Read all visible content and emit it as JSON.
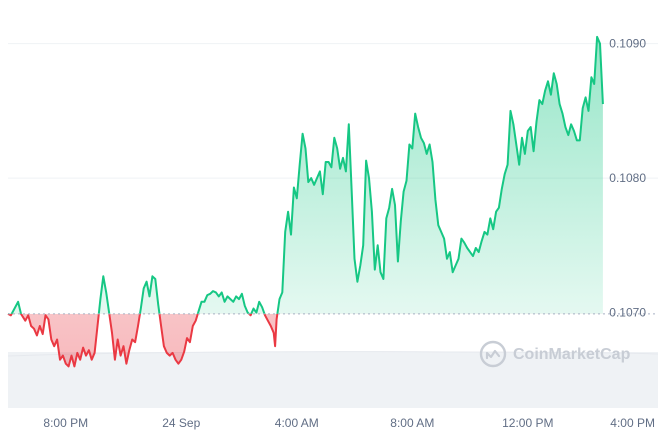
{
  "chart_data": {
    "type": "area",
    "title": "",
    "xlabel": "",
    "ylabel": "",
    "x_tick_labels": [
      "8:00 PM",
      "24 Sep",
      "4:00 AM",
      "8:00 AM",
      "12:00 PM",
      "4:00 PM"
    ],
    "x_tick_hours": [
      2,
      6,
      10,
      14,
      18,
      22
    ],
    "y_ticks": [
      {
        "value": 0.107,
        "label": "0.1070"
      },
      {
        "value": 0.108,
        "label": "0.1080"
      },
      {
        "value": 0.109,
        "label": "0.1090"
      }
    ],
    "ylim": [
      0.10635,
      0.10925
    ],
    "xlim_hours": [
      0,
      22.3
    ],
    "baseline_value": 0.10699,
    "colors": {
      "up": "#16c784",
      "down": "#ea3943",
      "grid": "#eff2f5",
      "baseline": "#a6b0c3",
      "volume": "#eff2f5"
    },
    "grid": true,
    "series": [
      {
        "points": [
          [
            0.0,
            0.10699
          ],
          [
            0.1,
            0.10698
          ],
          [
            0.2,
            0.10702
          ],
          [
            0.35,
            0.10708
          ],
          [
            0.45,
            0.10699
          ],
          [
            0.6,
            0.10694
          ],
          [
            0.7,
            0.10698
          ],
          [
            0.8,
            0.1069
          ],
          [
            0.9,
            0.10688
          ],
          [
            1.0,
            0.10683
          ],
          [
            1.1,
            0.1069
          ],
          [
            1.2,
            0.10684
          ],
          [
            1.3,
            0.10698
          ],
          [
            1.4,
            0.10695
          ],
          [
            1.5,
            0.1068
          ],
          [
            1.6,
            0.10675
          ],
          [
            1.7,
            0.1068
          ],
          [
            1.8,
            0.10665
          ],
          [
            1.9,
            0.10668
          ],
          [
            2.0,
            0.10662
          ],
          [
            2.1,
            0.1066
          ],
          [
            2.2,
            0.10668
          ],
          [
            2.3,
            0.1066
          ],
          [
            2.4,
            0.1067
          ],
          [
            2.5,
            0.10665
          ],
          [
            2.6,
            0.10674
          ],
          [
            2.7,
            0.10668
          ],
          [
            2.8,
            0.10672
          ],
          [
            2.9,
            0.10665
          ],
          [
            3.0,
            0.1067
          ],
          [
            3.1,
            0.1069
          ],
          [
            3.2,
            0.1071
          ],
          [
            3.3,
            0.10727
          ],
          [
            3.4,
            0.10715
          ],
          [
            3.5,
            0.107
          ],
          [
            3.6,
            0.10685
          ],
          [
            3.7,
            0.10665
          ],
          [
            3.8,
            0.1068
          ],
          [
            3.9,
            0.10668
          ],
          [
            4.0,
            0.10675
          ],
          [
            4.1,
            0.10662
          ],
          [
            4.2,
            0.10672
          ],
          [
            4.3,
            0.1068
          ],
          [
            4.4,
            0.10678
          ],
          [
            4.5,
            0.1069
          ],
          [
            4.6,
            0.10703
          ],
          [
            4.7,
            0.10718
          ],
          [
            4.8,
            0.10723
          ],
          [
            4.9,
            0.10712
          ],
          [
            5.0,
            0.10727
          ],
          [
            5.1,
            0.10725
          ],
          [
            5.2,
            0.10706
          ],
          [
            5.3,
            0.1069
          ],
          [
            5.4,
            0.10675
          ],
          [
            5.5,
            0.1067
          ],
          [
            5.6,
            0.10668
          ],
          [
            5.7,
            0.1067
          ],
          [
            5.8,
            0.10665
          ],
          [
            5.9,
            0.10662
          ],
          [
            6.0,
            0.10665
          ],
          [
            6.1,
            0.10671
          ],
          [
            6.2,
            0.10681
          ],
          [
            6.3,
            0.10678
          ],
          [
            6.4,
            0.1069
          ],
          [
            6.5,
            0.10694
          ],
          [
            6.6,
            0.10701
          ],
          [
            6.7,
            0.10708
          ],
          [
            6.8,
            0.10708
          ],
          [
            6.9,
            0.10713
          ],
          [
            7.0,
            0.10714
          ],
          [
            7.1,
            0.10716
          ],
          [
            7.2,
            0.10715
          ],
          [
            7.3,
            0.10712
          ],
          [
            7.4,
            0.10715
          ],
          [
            7.5,
            0.10708
          ],
          [
            7.6,
            0.10712
          ],
          [
            7.7,
            0.1071
          ],
          [
            7.8,
            0.10708
          ],
          [
            7.9,
            0.10712
          ],
          [
            8.0,
            0.1071
          ],
          [
            8.1,
            0.10714
          ],
          [
            8.2,
            0.10705
          ],
          [
            8.3,
            0.107
          ],
          [
            8.4,
            0.10698
          ],
          [
            8.5,
            0.10703
          ],
          [
            8.6,
            0.107
          ],
          [
            8.7,
            0.10708
          ],
          [
            8.8,
            0.10704
          ],
          [
            8.9,
            0.10698
          ],
          [
            9.0,
            0.10694
          ],
          [
            9.1,
            0.1069
          ],
          [
            9.2,
            0.10685
          ],
          [
            9.25,
            0.10675
          ],
          [
            9.3,
            0.10695
          ],
          [
            9.4,
            0.1071
          ],
          [
            9.5,
            0.10715
          ],
          [
            9.6,
            0.1076
          ],
          [
            9.7,
            0.10775
          ],
          [
            9.8,
            0.10758
          ],
          [
            9.9,
            0.10793
          ],
          [
            10.0,
            0.10785
          ],
          [
            10.1,
            0.1081
          ],
          [
            10.2,
            0.10833
          ],
          [
            10.3,
            0.10822
          ],
          [
            10.4,
            0.10797
          ],
          [
            10.5,
            0.108
          ],
          [
            10.6,
            0.10795
          ],
          [
            10.7,
            0.108
          ],
          [
            10.8,
            0.10805
          ],
          [
            10.9,
            0.10788
          ],
          [
            11.0,
            0.10812
          ],
          [
            11.1,
            0.10812
          ],
          [
            11.2,
            0.10808
          ],
          [
            11.3,
            0.1083
          ],
          [
            11.4,
            0.10822
          ],
          [
            11.5,
            0.10807
          ],
          [
            11.6,
            0.10815
          ],
          [
            11.7,
            0.10805
          ],
          [
            11.8,
            0.1084
          ],
          [
            11.9,
            0.1079
          ],
          [
            12.0,
            0.1074
          ],
          [
            12.1,
            0.10723
          ],
          [
            12.2,
            0.10735
          ],
          [
            12.3,
            0.1075
          ],
          [
            12.4,
            0.10813
          ],
          [
            12.5,
            0.108
          ],
          [
            12.6,
            0.10775
          ],
          [
            12.7,
            0.10732
          ],
          [
            12.8,
            0.1075
          ],
          [
            12.9,
            0.1073
          ],
          [
            13.0,
            0.10725
          ],
          [
            13.1,
            0.1077
          ],
          [
            13.2,
            0.10778
          ],
          [
            13.3,
            0.10792
          ],
          [
            13.4,
            0.1078
          ],
          [
            13.5,
            0.10738
          ],
          [
            13.6,
            0.10768
          ],
          [
            13.7,
            0.1079
          ],
          [
            13.8,
            0.10798
          ],
          [
            13.9,
            0.10825
          ],
          [
            14.0,
            0.10822
          ],
          [
            14.1,
            0.10848
          ],
          [
            14.2,
            0.10838
          ],
          [
            14.3,
            0.1083
          ],
          [
            14.4,
            0.10826
          ],
          [
            14.5,
            0.10818
          ],
          [
            14.6,
            0.10825
          ],
          [
            14.7,
            0.10812
          ],
          [
            14.8,
            0.10784
          ],
          [
            14.9,
            0.10765
          ],
          [
            15.0,
            0.1076
          ],
          [
            15.1,
            0.10755
          ],
          [
            15.2,
            0.1074
          ],
          [
            15.3,
            0.10745
          ],
          [
            15.4,
            0.1073
          ],
          [
            15.5,
            0.10735
          ],
          [
            15.6,
            0.1074
          ],
          [
            15.7,
            0.10755
          ],
          [
            15.8,
            0.10752
          ],
          [
            15.9,
            0.10748
          ],
          [
            16.0,
            0.10745
          ],
          [
            16.1,
            0.10742
          ],
          [
            16.2,
            0.10748
          ],
          [
            16.3,
            0.10745
          ],
          [
            16.4,
            0.10753
          ],
          [
            16.5,
            0.1076
          ],
          [
            16.6,
            0.10758
          ],
          [
            16.7,
            0.1077
          ],
          [
            16.8,
            0.10762
          ],
          [
            16.9,
            0.10775
          ],
          [
            17.0,
            0.10778
          ],
          [
            17.1,
            0.10792
          ],
          [
            17.2,
            0.10803
          ],
          [
            17.3,
            0.1081
          ],
          [
            17.4,
            0.1085
          ],
          [
            17.5,
            0.1084
          ],
          [
            17.6,
            0.10825
          ],
          [
            17.7,
            0.1081
          ],
          [
            17.8,
            0.1083
          ],
          [
            17.9,
            0.10818
          ],
          [
            18.0,
            0.10835
          ],
          [
            18.1,
            0.10838
          ],
          [
            18.2,
            0.1082
          ],
          [
            18.3,
            0.10842
          ],
          [
            18.4,
            0.10858
          ],
          [
            18.5,
            0.10855
          ],
          [
            18.6,
            0.10865
          ],
          [
            18.7,
            0.10872
          ],
          [
            18.8,
            0.10862
          ],
          [
            18.9,
            0.10878
          ],
          [
            19.0,
            0.1087
          ],
          [
            19.1,
            0.10855
          ],
          [
            19.2,
            0.10848
          ],
          [
            19.3,
            0.10838
          ],
          [
            19.4,
            0.10832
          ],
          [
            19.5,
            0.1084
          ],
          [
            19.6,
            0.10835
          ],
          [
            19.7,
            0.10828
          ],
          [
            19.8,
            0.10828
          ],
          [
            19.9,
            0.10852
          ],
          [
            20.0,
            0.1086
          ],
          [
            20.1,
            0.1085
          ],
          [
            20.2,
            0.10875
          ],
          [
            20.3,
            0.1087
          ],
          [
            20.4,
            0.10905
          ],
          [
            20.5,
            0.109
          ],
          [
            20.6,
            0.10855
          ]
        ]
      }
    ]
  },
  "watermark": {
    "text": "CoinMarketCap",
    "icon": "coinmarketcap-logo-icon"
  }
}
